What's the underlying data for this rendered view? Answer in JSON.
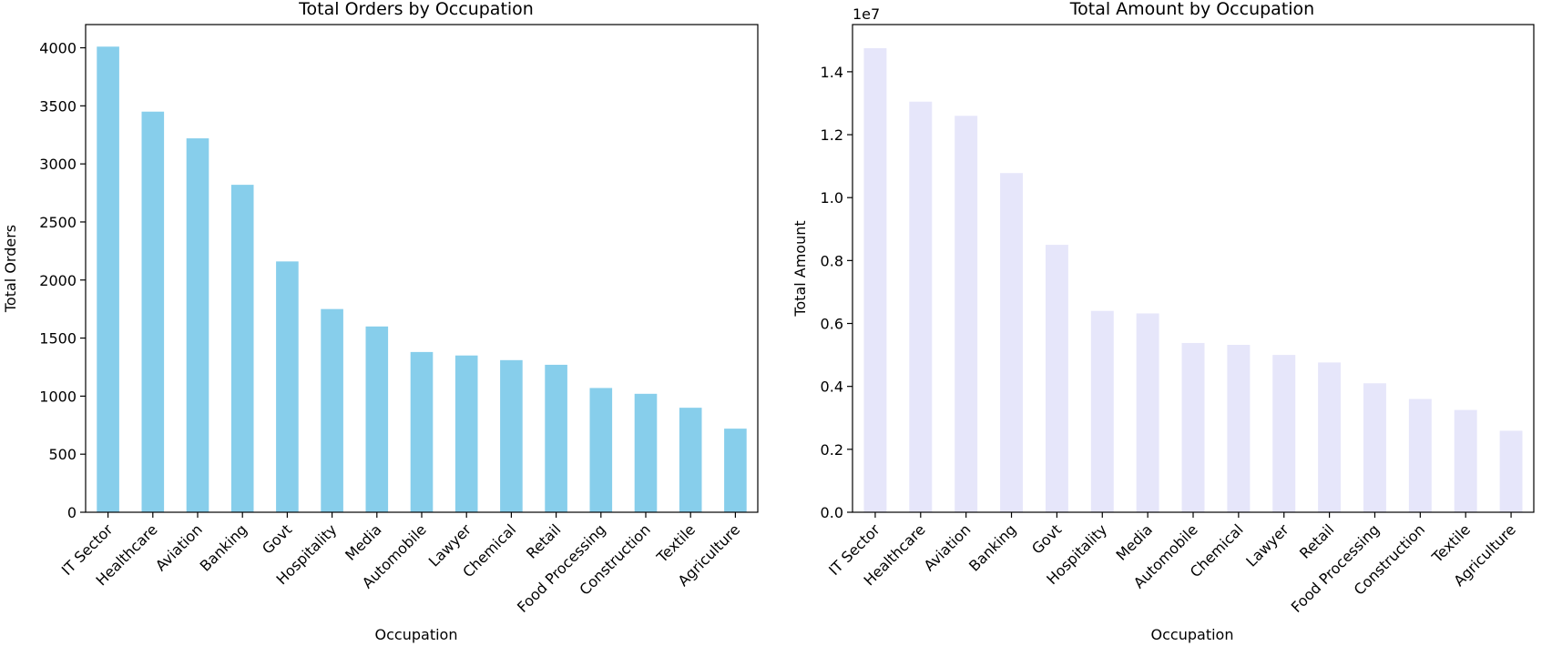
{
  "chart_data": [
    {
      "type": "bar",
      "title": "Total Orders by Occupation",
      "xlabel": "Occupation",
      "ylabel": "Total Orders",
      "ylim": [
        0,
        4200
      ],
      "yticks": [
        0,
        500,
        1000,
        1500,
        2000,
        2500,
        3000,
        3500,
        4000
      ],
      "ytick_labels": [
        "0",
        "500",
        "1000",
        "1500",
        "2000",
        "2500",
        "3000",
        "3500",
        "4000"
      ],
      "offset_text": "",
      "bar_color": "#87ceeb",
      "grid": false,
      "categories": [
        "IT Sector",
        "Healthcare",
        "Aviation",
        "Banking",
        "Govt",
        "Hospitality",
        "Media",
        "Automobile",
        "Lawyer",
        "Chemical",
        "Retail",
        "Food Processing",
        "Construction",
        "Textile",
        "Agriculture"
      ],
      "values": [
        4010,
        3450,
        3220,
        2820,
        2160,
        1750,
        1600,
        1380,
        1350,
        1310,
        1270,
        1070,
        1020,
        900,
        720
      ]
    },
    {
      "type": "bar",
      "title": "Total Amount by Occupation",
      "xlabel": "Occupation",
      "ylabel": "Total Amount",
      "ylim": [
        0,
        15500000
      ],
      "yticks": [
        0,
        2000000,
        4000000,
        6000000,
        8000000,
        10000000,
        12000000,
        14000000
      ],
      "ytick_labels": [
        "0.0",
        "0.2",
        "0.4",
        "0.6",
        "0.8",
        "1.0",
        "1.2",
        "1.4"
      ],
      "offset_text": "1e7",
      "bar_color": "#e6e6fa",
      "grid": false,
      "categories": [
        "IT Sector",
        "Healthcare",
        "Aviation",
        "Banking",
        "Govt",
        "Hospitality",
        "Media",
        "Automobile",
        "Chemical",
        "Lawyer",
        "Retail",
        "Food Processing",
        "Construction",
        "Textile",
        "Agriculture"
      ],
      "values": [
        14750000,
        13050000,
        12600000,
        10780000,
        8500000,
        6400000,
        6320000,
        5380000,
        5320000,
        5000000,
        4760000,
        4100000,
        3600000,
        3250000,
        2590000
      ]
    }
  ]
}
